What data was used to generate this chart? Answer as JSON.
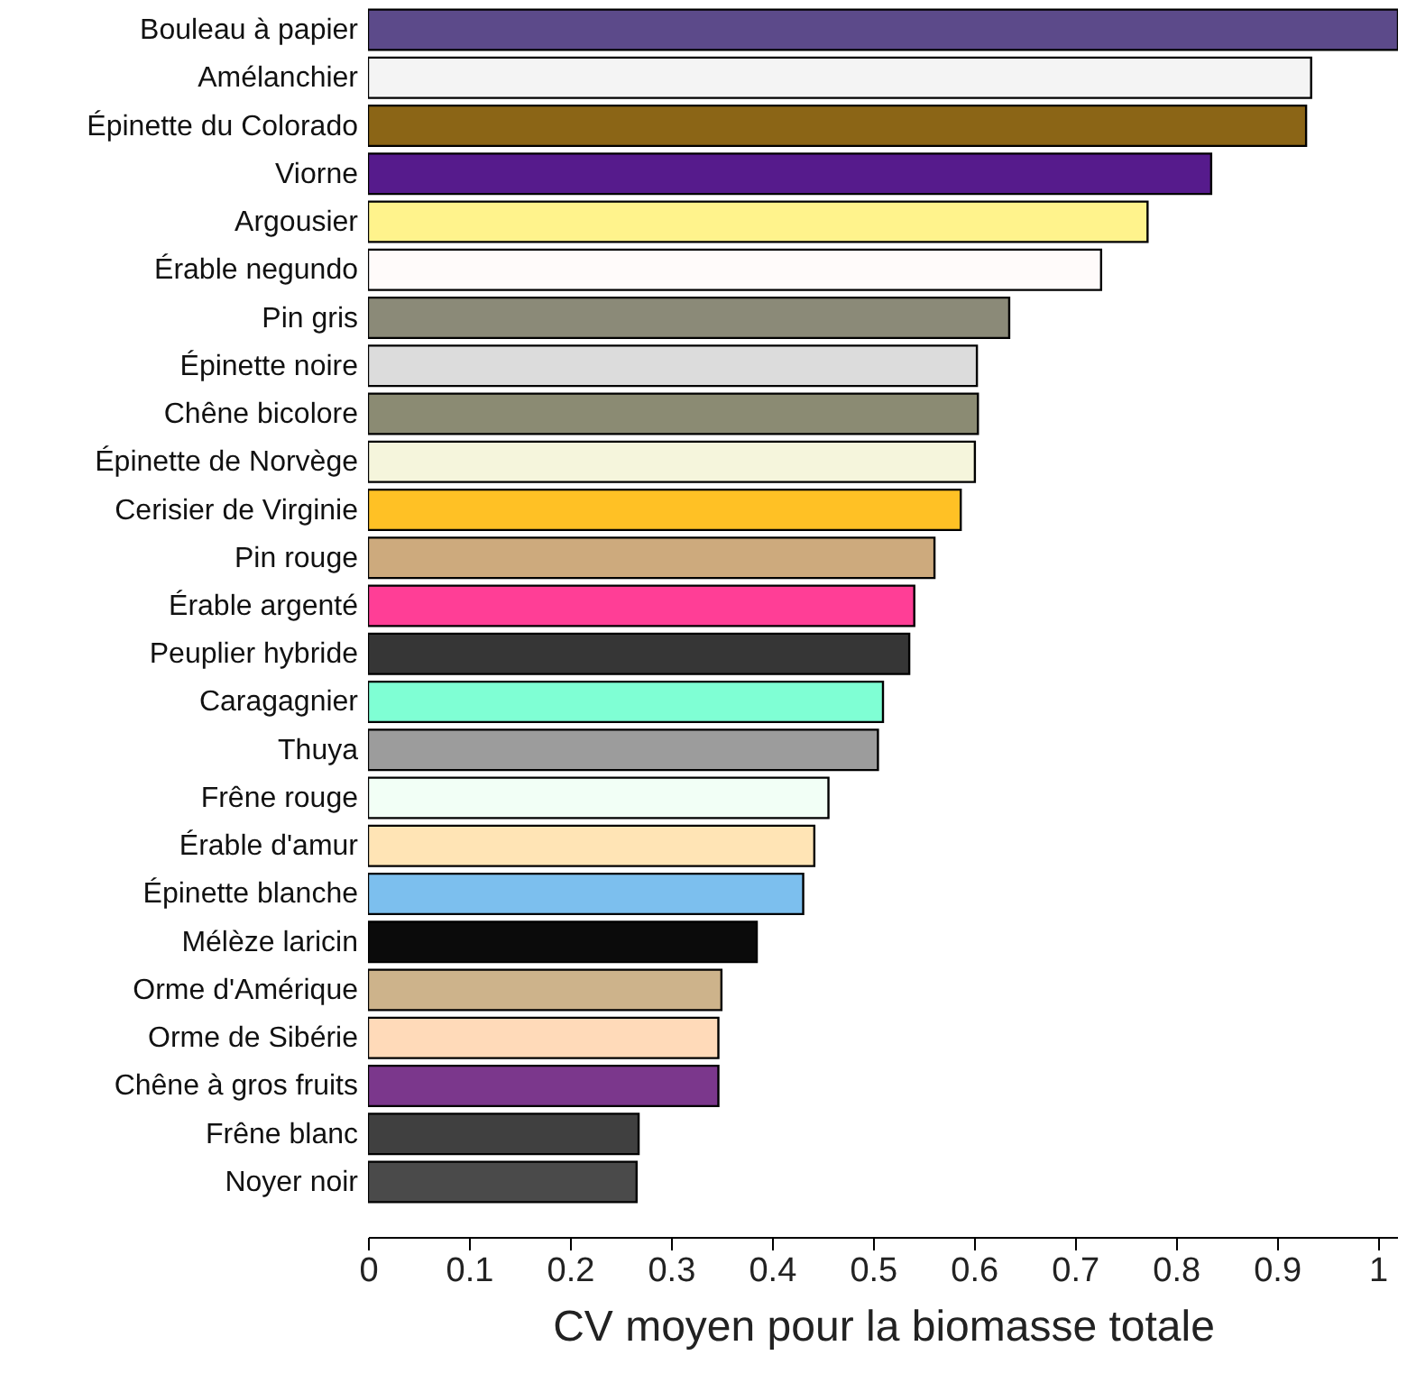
{
  "chart_data": {
    "type": "bar",
    "orientation": "horizontal",
    "xlabel": "CV moyen pour la biomasse totale",
    "categories": [
      "Bouleau à papier",
      "Amélanchier",
      "Épinette du Colorado",
      "Viorne",
      "Argousier",
      "Érable negundo",
      "Pin gris",
      "Épinette noire",
      "Chêne bicolore",
      "Épinette de Norvège",
      "Cerisier de Virginie",
      "Pin rouge",
      "Érable argenté",
      "Peuplier hybride",
      "Caragagnier",
      "Thuya",
      "Frêne rouge",
      "Érable d'amur",
      "Épinette blanche",
      "Mélèze laricin",
      "Orme d'Amérique",
      "Orme de Sibérie",
      "Chêne à gros fruits",
      "Frêne blanc",
      "Noyer noir"
    ],
    "values": [
      1.02,
      0.934,
      0.929,
      0.835,
      0.772,
      0.726,
      0.635,
      0.603,
      0.604,
      0.601,
      0.587,
      0.561,
      0.541,
      0.536,
      0.51,
      0.505,
      0.456,
      0.442,
      0.431,
      0.385,
      0.35,
      0.347,
      0.347,
      0.268,
      0.266
    ],
    "colors": [
      "#5c4a8a",
      "#f4f4f4",
      "#8b6516",
      "#561b8c",
      "#fff38c",
      "#fffbfa",
      "#8b8a78",
      "#dcdcdc",
      "#8b8b73",
      "#f5f5dc",
      "#ffc125",
      "#cdaa7d",
      "#ff3e96",
      "#363636",
      "#7fffd4",
      "#9c9c9c",
      "#f2fff6",
      "#ffe4b5",
      "#7cbfee",
      "#0b0b0b",
      "#cdb38b",
      "#ffdab9",
      "#7b378c",
      "#404040",
      "#4a4a4a"
    ],
    "xlim": [
      0,
      1.02
    ],
    "xticks": [
      0,
      0.1,
      0.2,
      0.3,
      0.4,
      0.5,
      0.6,
      0.7,
      0.8,
      0.9,
      1
    ],
    "grid": false
  }
}
